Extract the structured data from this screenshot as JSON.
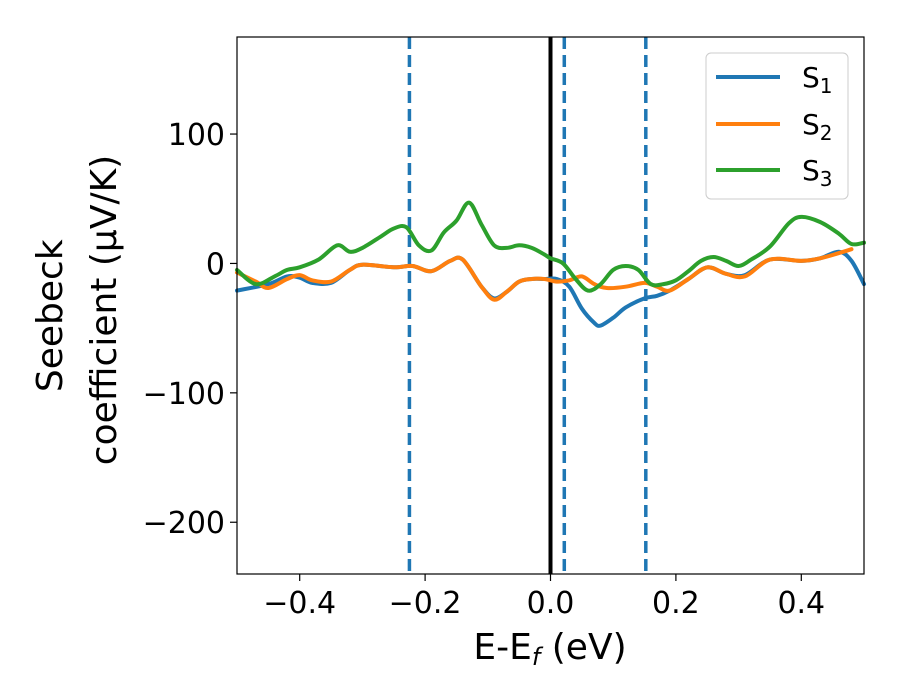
{
  "chart_data": {
    "type": "line",
    "xlabel": "E-E",
    "xlabel_sub": "f",
    "xlabel_unit": " (eV)",
    "ylabel_line1": "Seebeck",
    "ylabel_line2": "coefficient  (μV/K)",
    "xlim": [
      -0.5,
      0.5
    ],
    "ylim": [
      -240,
      175
    ],
    "x_ticks": [
      -0.4,
      -0.2,
      0.0,
      0.2,
      0.4
    ],
    "x_tick_labels": [
      "−0.4",
      "−0.2",
      "0.0",
      "0.2",
      "0.4"
    ],
    "y_ticks": [
      100,
      0,
      -100,
      -200
    ],
    "y_tick_labels": [
      "100",
      "0",
      "−100",
      "−200"
    ],
    "grid": false,
    "legend_position": "top-right",
    "legend": [
      {
        "base": "S",
        "sub": "1"
      },
      {
        "base": "S",
        "sub": "2"
      },
      {
        "base": "S",
        "sub": "3"
      }
    ],
    "vlines": [
      {
        "x": -0.225,
        "style": "dashed",
        "color": "#1f77b4"
      },
      {
        "x": 0.0,
        "style": "solid",
        "color": "#000000"
      },
      {
        "x": 0.022,
        "style": "dashed",
        "color": "#1f77b4"
      },
      {
        "x": 0.152,
        "style": "dashed",
        "color": "#1f77b4"
      }
    ],
    "series": [
      {
        "name": "S1",
        "color": "#1f77b4",
        "x": [
          -0.5,
          -0.45,
          -0.42,
          -0.4,
          -0.38,
          -0.35,
          -0.32,
          -0.3,
          -0.25,
          -0.22,
          -0.19,
          -0.16,
          -0.14,
          -0.11,
          -0.09,
          -0.07,
          -0.05,
          -0.03,
          -0.01,
          0.01,
          0.03,
          0.05,
          0.07,
          0.08,
          0.1,
          0.12,
          0.15,
          0.17,
          0.19,
          0.22,
          0.25,
          0.28,
          0.31,
          0.35,
          0.4,
          0.43,
          0.46,
          0.48,
          0.5
        ],
        "y": [
          -21,
          -16,
          -10,
          -11,
          -15,
          -15,
          -5,
          -1,
          -3,
          -2,
          -6,
          2,
          3,
          -18,
          -27,
          -22,
          -14,
          -12,
          -12,
          -12,
          -18,
          -35,
          -46,
          -48,
          -42,
          -34,
          -27,
          -25,
          -21,
          -12,
          -3,
          -8,
          -9,
          3,
          2,
          4,
          9,
          2,
          -16
        ]
      },
      {
        "name": "S2",
        "color": "#ff7f0e",
        "x": [
          -0.5,
          -0.47,
          -0.45,
          -0.42,
          -0.4,
          -0.38,
          -0.35,
          -0.32,
          -0.3,
          -0.25,
          -0.22,
          -0.19,
          -0.16,
          -0.14,
          -0.11,
          -0.09,
          -0.07,
          -0.05,
          -0.03,
          -0.01,
          0.01,
          0.03,
          0.05,
          0.07,
          0.09,
          0.12,
          0.15,
          0.17,
          0.19,
          0.22,
          0.25,
          0.28,
          0.31,
          0.35,
          0.4,
          0.43,
          0.46,
          0.48
        ],
        "y": [
          -7,
          -14,
          -19,
          -12,
          -9,
          -13,
          -14,
          -5,
          -1,
          -3,
          -2,
          -6,
          2,
          3,
          -18,
          -28,
          -22,
          -14,
          -12,
          -12,
          -14,
          -13,
          -10,
          -16,
          -19,
          -18,
          -15,
          -18,
          -21,
          -12,
          -3,
          -8,
          -10,
          3,
          2,
          4,
          8,
          11
        ]
      },
      {
        "name": "S3",
        "color": "#2ca02c",
        "x": [
          -0.5,
          -0.47,
          -0.44,
          -0.42,
          -0.4,
          -0.37,
          -0.34,
          -0.32,
          -0.3,
          -0.27,
          -0.25,
          -0.23,
          -0.21,
          -0.19,
          -0.17,
          -0.15,
          -0.13,
          -0.11,
          -0.09,
          -0.07,
          -0.05,
          -0.03,
          -0.01,
          0.0,
          0.02,
          0.04,
          0.06,
          0.08,
          0.1,
          0.12,
          0.14,
          0.16,
          0.18,
          0.2,
          0.22,
          0.24,
          0.26,
          0.28,
          0.3,
          0.32,
          0.35,
          0.38,
          0.4,
          0.43,
          0.46,
          0.48,
          0.5
        ],
        "y": [
          -5,
          -16,
          -10,
          -5,
          -3,
          3,
          14,
          9,
          12,
          21,
          27,
          28,
          14,
          10,
          24,
          33,
          47,
          30,
          14,
          12,
          14,
          12,
          7,
          4,
          0,
          -12,
          -21,
          -16,
          -5,
          -2,
          -5,
          -16,
          -16,
          -13,
          -6,
          2,
          5,
          2,
          -2,
          3,
          13,
          31,
          36,
          32,
          23,
          15,
          16
        ]
      }
    ]
  }
}
